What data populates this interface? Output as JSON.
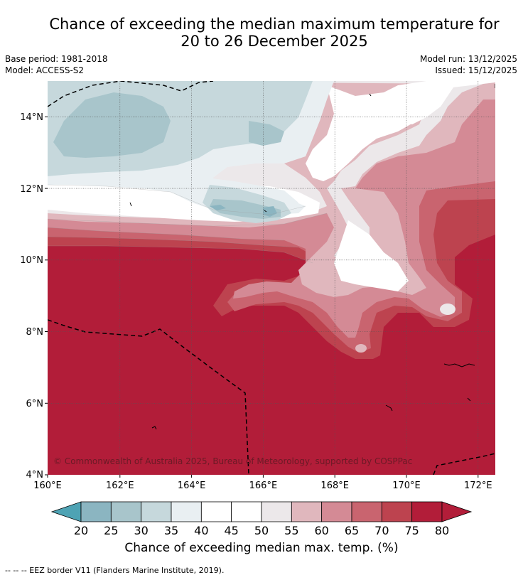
{
  "title": {
    "line1": "Chance of exceeding the median maximum temperature for",
    "line2": "20 to 26 December 2025"
  },
  "meta": {
    "base_period": "Base period: 1981-2018",
    "model": "Model: ACCESS-S2",
    "model_run": "Model run: 13/12/2025",
    "issued": "Issued: 15/12/2025"
  },
  "map": {
    "lat_labels": [
      "14°N",
      "12°N",
      "10°N",
      "8°N",
      "6°N",
      "4°N"
    ],
    "lon_labels": [
      "160°E",
      "162°E",
      "164°E",
      "166°E",
      "168°E",
      "170°E",
      "172°E"
    ],
    "lat_range": [
      4,
      15
    ],
    "lon_range": [
      160,
      172.5
    ],
    "copyright": "© Commonwealth of Australia 2025, Bureau of Meteorology, supported by COSPPac"
  },
  "colorbar": {
    "ticks": [
      "20",
      "25",
      "30",
      "35",
      "40",
      "45",
      "50",
      "55",
      "60",
      "65",
      "70",
      "75",
      "80"
    ],
    "colors": [
      "#6aaebe",
      "#8bb5c1",
      "#a8c5cb",
      "#c6d8dc",
      "#e9eff2",
      "#ffffff",
      "#ffffff",
      "#ece8ea",
      "#e0b7bd",
      "#d48a95",
      "#c9646f",
      "#bd434f",
      "#b21d39"
    ],
    "label": "Chance of exceeding median max. temp. (%)"
  },
  "colors": {
    "c80": "#b21d39",
    "c75": "#bd434f",
    "c70": "#c9646f",
    "c65": "#d48a95",
    "c60": "#e0b7bd",
    "c55": "#ece8ea",
    "c50": "#ffffff",
    "c45": "#e9eff2",
    "c40": "#c6d8dc",
    "c35": "#a8c5cb",
    "c30": "#8bb5c1"
  },
  "footer": "-- -- -- EEZ border V11 (Flanders Marine Institute, 2019)."
}
